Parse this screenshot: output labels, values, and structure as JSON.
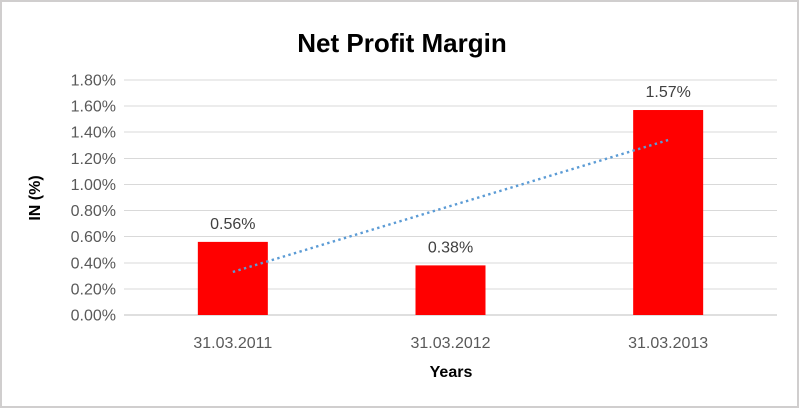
{
  "window": {
    "background": "#FFFFFF",
    "border_color": "#D0CECE"
  },
  "chart_data": {
    "type": "bar",
    "title": "Net Profit Margin",
    "xlabel": "Years",
    "ylabel": "IN (%)",
    "categories": [
      "31.03.2011",
      "31.03.2012",
      "31.03.2013"
    ],
    "values": [
      0.56,
      0.38,
      1.57
    ],
    "data_labels": [
      "0.56%",
      "0.38%",
      "1.57%"
    ],
    "unit": "percent",
    "ylim": [
      0,
      1.8
    ],
    "ytick_step": 0.2,
    "ytick_labels": [
      "0.00%",
      "0.20%",
      "0.40%",
      "0.60%",
      "0.80%",
      "1.00%",
      "1.20%",
      "1.40%",
      "1.60%",
      "1.80%"
    ],
    "grid": true,
    "legend_visible": false,
    "bar_color": "#FF0000",
    "trendline": {
      "type": "linear",
      "style": "dotted",
      "color": "#5B9BD5",
      "y_start": 0.33,
      "y_end": 1.34
    },
    "colors": {
      "title_text": "#595959",
      "axis_text": "#595959",
      "data_label_text": "#404040",
      "gridline": "#D9D9D9",
      "axis_line": "#BFBFBF"
    }
  }
}
